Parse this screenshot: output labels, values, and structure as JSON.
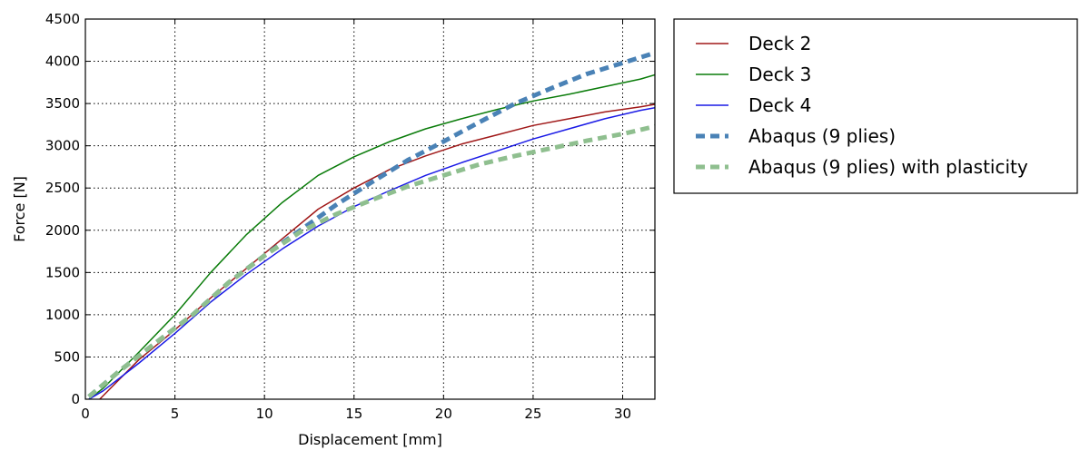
{
  "chart_data": {
    "type": "line",
    "xlabel": "Displacement [mm]",
    "ylabel": "Force [N]",
    "xlim": [
      0,
      31.8
    ],
    "ylim": [
      0,
      4500
    ],
    "xticks": [
      0,
      5,
      10,
      15,
      20,
      25,
      30
    ],
    "yticks": [
      0,
      500,
      1000,
      1500,
      2000,
      2500,
      3000,
      3500,
      4000,
      4500
    ],
    "grid": true,
    "legend_position": "outside-right",
    "series": [
      {
        "name": "Deck 2",
        "color": "#a01818",
        "style": "solid",
        "x": [
          0.8,
          1.5,
          3,
          5,
          7,
          9,
          11,
          13,
          15,
          17,
          19,
          21,
          23,
          25,
          27,
          29,
          31,
          31.8
        ],
        "y": [
          0,
          150,
          470,
          820,
          1200,
          1550,
          1900,
          2250,
          2500,
          2720,
          2880,
          3020,
          3130,
          3240,
          3320,
          3400,
          3460,
          3490
        ]
      },
      {
        "name": "Deck 3",
        "color": "#0a7c0a",
        "style": "solid",
        "x": [
          0.2,
          1,
          3,
          5,
          7,
          9,
          11,
          13,
          15,
          17,
          19,
          21,
          23,
          25,
          27,
          29,
          31,
          31.8
        ],
        "y": [
          0,
          130,
          560,
          1000,
          1500,
          1950,
          2330,
          2650,
          2870,
          3050,
          3200,
          3320,
          3430,
          3530,
          3610,
          3700,
          3790,
          3840
        ]
      },
      {
        "name": "Deck 4",
        "color": "#1a1ae6",
        "style": "solid",
        "x": [
          0.2,
          1,
          3,
          5,
          7,
          9,
          11,
          13,
          15,
          17,
          19,
          21,
          23,
          25,
          27,
          29,
          31,
          31.8
        ],
        "y": [
          0,
          100,
          430,
          780,
          1150,
          1480,
          1780,
          2050,
          2280,
          2470,
          2650,
          2800,
          2940,
          3080,
          3200,
          3320,
          3420,
          3450
        ]
      },
      {
        "name": "Abaqus (9 plies)",
        "color": "#4a82b6",
        "style": "dashed",
        "x": [
          0.2,
          2,
          4,
          6,
          8,
          10,
          12,
          14,
          16,
          18,
          20,
          22,
          24,
          26,
          28,
          30,
          31.8
        ],
        "y": [
          30,
          350,
          680,
          1000,
          1380,
          1700,
          2000,
          2300,
          2570,
          2830,
          3050,
          3280,
          3500,
          3680,
          3850,
          3980,
          4100
        ]
      },
      {
        "name": "Abaqus (9 plies) with plasticity",
        "color": "#8fbf8f",
        "style": "dashed",
        "x": [
          0.2,
          2,
          4,
          6,
          8,
          10,
          12,
          14,
          16,
          18,
          20,
          22,
          24,
          26,
          28,
          30,
          31.8
        ],
        "y": [
          30,
          350,
          680,
          1000,
          1380,
          1700,
          1980,
          2190,
          2360,
          2520,
          2650,
          2780,
          2880,
          2970,
          3060,
          3140,
          3230
        ]
      }
    ]
  }
}
